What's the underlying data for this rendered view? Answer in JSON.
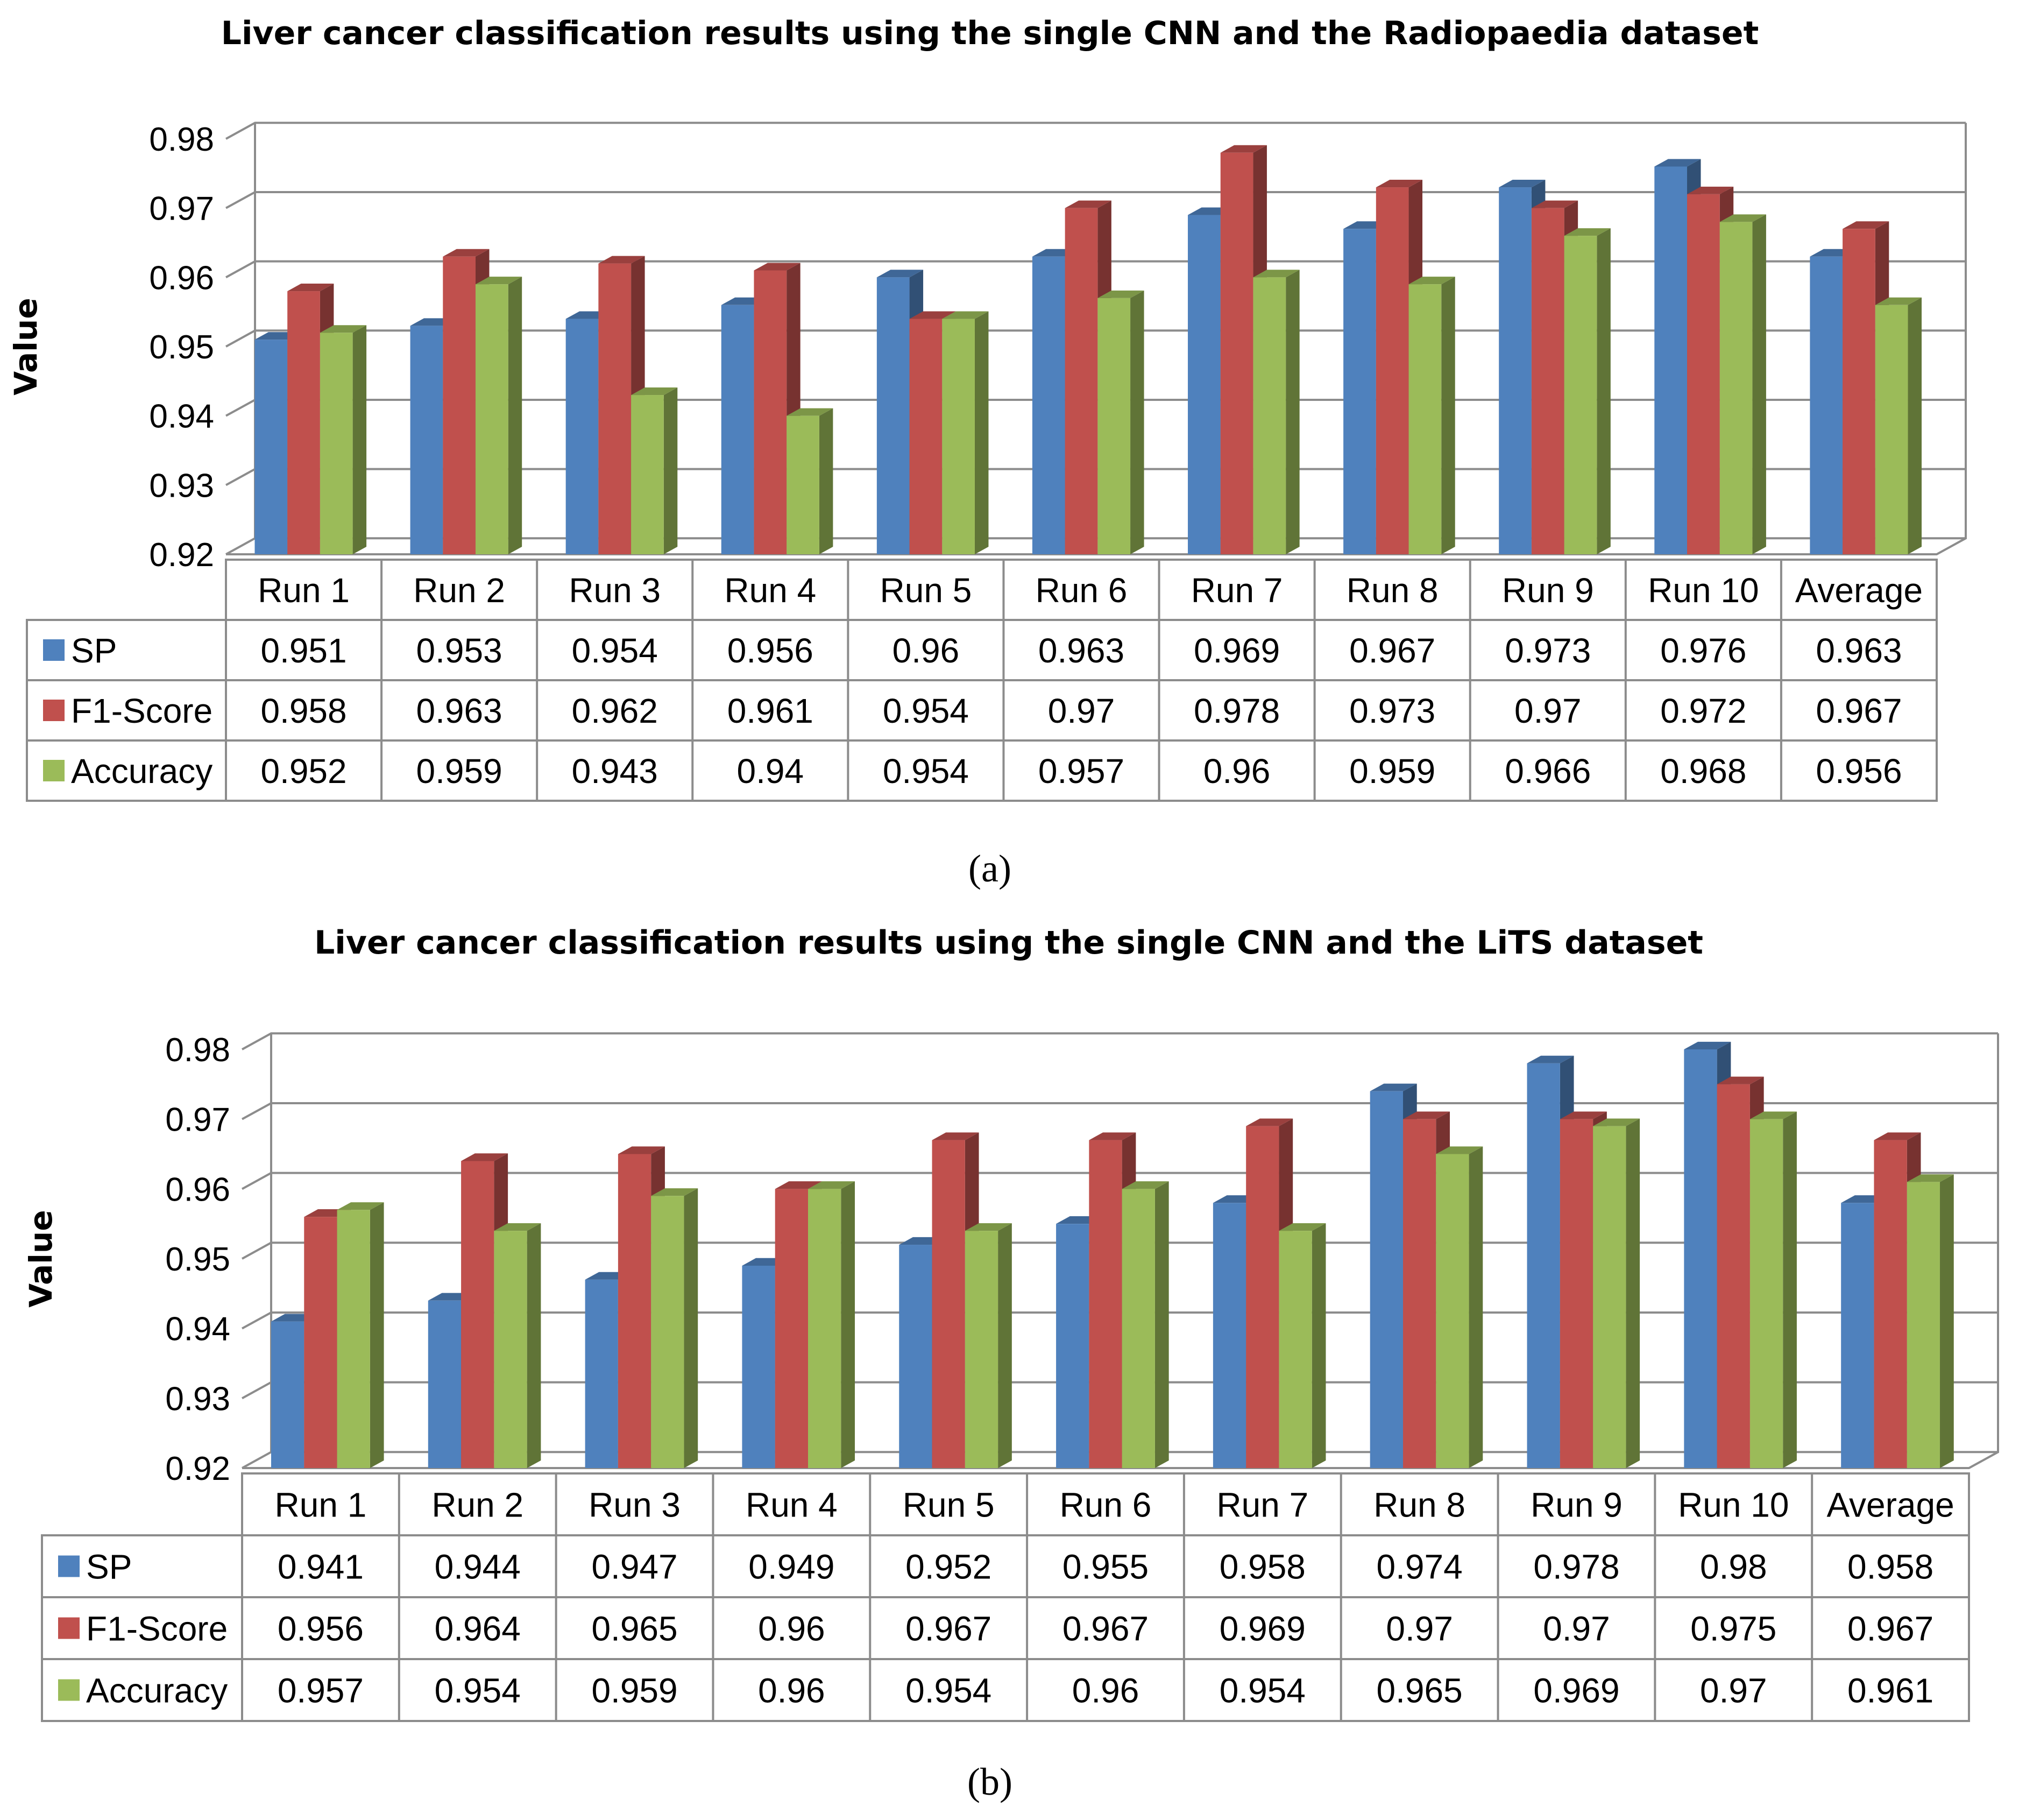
{
  "chart_data": [
    {
      "type": "bar",
      "title": "Liver cancer classification results using the single CNN and the Radiopaedia dataset",
      "caption": "(a)",
      "ylabel": "Value",
      "xlabel": "",
      "ylim": [
        0.92,
        0.98
      ],
      "yticks": [
        "0.92",
        "0.93",
        "0.94",
        "0.95",
        "0.96",
        "0.97",
        "0.98"
      ],
      "categories": [
        "Run 1",
        "Run 2",
        "Run 3",
        "Run 4",
        "Run 5",
        "Run 6",
        "Run 7",
        "Run 8",
        "Run 9",
        "Run 10",
        "Average"
      ],
      "series": [
        {
          "name": "SP",
          "color": "#4f81bd",
          "values": [
            0.951,
            0.953,
            0.954,
            0.956,
            0.96,
            0.963,
            0.969,
            0.967,
            0.973,
            0.976,
            0.963
          ]
        },
        {
          "name": "F1-Score",
          "color": "#c0504d",
          "values": [
            0.958,
            0.963,
            0.962,
            0.961,
            0.954,
            0.97,
            0.978,
            0.973,
            0.97,
            0.972,
            0.967
          ]
        },
        {
          "name": "Accuracy",
          "color": "#9bbb59",
          "values": [
            0.952,
            0.959,
            0.943,
            0.94,
            0.954,
            0.957,
            0.96,
            0.959,
            0.966,
            0.968,
            0.956
          ]
        }
      ],
      "table": {
        "SP": [
          "0.951",
          "0.953",
          "0.954",
          "0.956",
          "0.96",
          "0.963",
          "0.969",
          "0.967",
          "0.973",
          "0.976",
          "0.963"
        ],
        "F1-Score": [
          "0.958",
          "0.963",
          "0.962",
          "0.961",
          "0.954",
          "0.97",
          "0.978",
          "0.973",
          "0.97",
          "0.972",
          "0.967"
        ],
        "Accuracy": [
          "0.952",
          "0.959",
          "0.943",
          "0.94",
          "0.954",
          "0.957",
          "0.96",
          "0.959",
          "0.966",
          "0.968",
          "0.956"
        ]
      },
      "grid": true,
      "legend": "data-table-left"
    },
    {
      "type": "bar",
      "title": "Liver cancer classification results using the single CNN and the LiTS dataset",
      "caption": "(b)",
      "ylabel": "Value",
      "xlabel": "",
      "ylim": [
        0.92,
        0.98
      ],
      "yticks": [
        "0.92",
        "0.93",
        "0.94",
        "0.95",
        "0.96",
        "0.97",
        "0.98"
      ],
      "categories": [
        "Run 1",
        "Run 2",
        "Run 3",
        "Run 4",
        "Run 5",
        "Run 6",
        "Run 7",
        "Run 8",
        "Run 9",
        "Run 10",
        "Average"
      ],
      "series": [
        {
          "name": "SP",
          "color": "#4f81bd",
          "values": [
            0.941,
            0.944,
            0.947,
            0.949,
            0.952,
            0.955,
            0.958,
            0.974,
            0.978,
            0.98,
            0.958
          ]
        },
        {
          "name": "F1-Score",
          "color": "#c0504d",
          "values": [
            0.956,
            0.964,
            0.965,
            0.96,
            0.967,
            0.967,
            0.969,
            0.97,
            0.97,
            0.975,
            0.967
          ]
        },
        {
          "name": "Accuracy",
          "color": "#9bbb59",
          "values": [
            0.957,
            0.954,
            0.959,
            0.96,
            0.954,
            0.96,
            0.954,
            0.965,
            0.969,
            0.97,
            0.961
          ]
        }
      ],
      "table": {
        "SP": [
          "0.941",
          "0.944",
          "0.947",
          "0.949",
          "0.952",
          "0.955",
          "0.958",
          "0.974",
          "0.978",
          "0.98",
          "0.958"
        ],
        "F1-Score": [
          "0.956",
          "0.964",
          "0.965",
          "0.96",
          "0.967",
          "0.967",
          "0.969",
          "0.97",
          "0.97",
          "0.975",
          "0.967"
        ],
        "Accuracy": [
          "0.957",
          "0.954",
          "0.959",
          "0.96",
          "0.954",
          "0.96",
          "0.954",
          "0.965",
          "0.969",
          "0.97",
          "0.961"
        ]
      },
      "grid": true,
      "legend": "data-table-left"
    }
  ]
}
